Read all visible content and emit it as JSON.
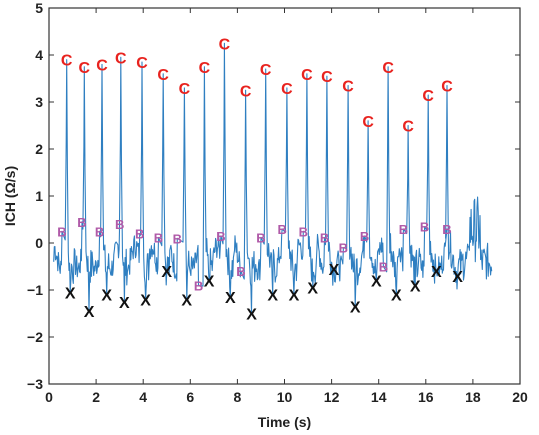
{
  "chart_data": {
    "type": "line",
    "title": "",
    "xlabel": "Time (s)",
    "ylabel": "ICH (Ω/s)",
    "xlim": [
      0,
      20
    ],
    "ylim": [
      -3,
      5
    ],
    "xticks": [
      0,
      2,
      4,
      6,
      8,
      10,
      12,
      14,
      16,
      18,
      20
    ],
    "yticks": [
      -3,
      -2,
      -1,
      0,
      1,
      2,
      3,
      4,
      5
    ],
    "grid": false,
    "legend": "none",
    "colors": {
      "signal": "#2f7fc1",
      "c_marker": "#e8231f",
      "b_marker": "#b05aa8",
      "x_marker": "#111111",
      "frame": "#333333"
    },
    "signal_range": [
      0.2,
      18.8
    ],
    "marker_symbols": {
      "c": "C",
      "b": "B",
      "x": "X"
    },
    "c_points": [
      {
        "x": 0.75,
        "y": 3.9
      },
      {
        "x": 1.5,
        "y": 3.75
      },
      {
        "x": 2.25,
        "y": 3.8
      },
      {
        "x": 3.05,
        "y": 3.95
      },
      {
        "x": 3.95,
        "y": 3.85
      },
      {
        "x": 4.85,
        "y": 3.6
      },
      {
        "x": 5.75,
        "y": 3.3
      },
      {
        "x": 6.6,
        "y": 3.75
      },
      {
        "x": 7.45,
        "y": 4.25
      },
      {
        "x": 8.35,
        "y": 3.25
      },
      {
        "x": 9.2,
        "y": 3.7
      },
      {
        "x": 10.1,
        "y": 3.3
      },
      {
        "x": 10.95,
        "y": 3.6
      },
      {
        "x": 11.8,
        "y": 3.55
      },
      {
        "x": 12.7,
        "y": 3.35
      },
      {
        "x": 13.55,
        "y": 2.6
      },
      {
        "x": 14.4,
        "y": 3.75
      },
      {
        "x": 15.25,
        "y": 2.5
      },
      {
        "x": 16.1,
        "y": 3.15
      },
      {
        "x": 16.9,
        "y": 3.35
      }
    ],
    "b_points": [
      {
        "x": 0.55,
        "y": 0.25
      },
      {
        "x": 1.4,
        "y": 0.45
      },
      {
        "x": 2.15,
        "y": 0.25
      },
      {
        "x": 3.0,
        "y": 0.4
      },
      {
        "x": 3.85,
        "y": 0.2
      },
      {
        "x": 4.65,
        "y": 0.12
      },
      {
        "x": 5.45,
        "y": 0.1
      },
      {
        "x": 6.35,
        "y": -0.9
      },
      {
        "x": 7.3,
        "y": 0.15
      },
      {
        "x": 8.15,
        "y": -0.6
      },
      {
        "x": 9.0,
        "y": 0.12
      },
      {
        "x": 9.9,
        "y": 0.3
      },
      {
        "x": 10.8,
        "y": 0.25
      },
      {
        "x": 11.7,
        "y": 0.12
      },
      {
        "x": 12.5,
        "y": -0.1
      },
      {
        "x": 13.4,
        "y": 0.15
      },
      {
        "x": 14.2,
        "y": -0.5
      },
      {
        "x": 15.05,
        "y": 0.3
      },
      {
        "x": 15.95,
        "y": 0.35
      },
      {
        "x": 16.9,
        "y": 0.3
      }
    ],
    "x_points": [
      {
        "x": 0.9,
        "y": -1.05
      },
      {
        "x": 1.7,
        "y": -1.45
      },
      {
        "x": 2.45,
        "y": -1.1
      },
      {
        "x": 3.2,
        "y": -1.25
      },
      {
        "x": 4.1,
        "y": -1.2
      },
      {
        "x": 5.0,
        "y": -0.6
      },
      {
        "x": 5.85,
        "y": -1.2
      },
      {
        "x": 6.8,
        "y": -0.8
      },
      {
        "x": 7.7,
        "y": -1.15
      },
      {
        "x": 8.6,
        "y": -1.5
      },
      {
        "x": 9.5,
        "y": -1.1
      },
      {
        "x": 10.4,
        "y": -1.1
      },
      {
        "x": 11.2,
        "y": -0.95
      },
      {
        "x": 12.1,
        "y": -0.55
      },
      {
        "x": 13.0,
        "y": -1.35
      },
      {
        "x": 13.9,
        "y": -0.8
      },
      {
        "x": 14.75,
        "y": -1.1
      },
      {
        "x": 15.55,
        "y": -0.9
      },
      {
        "x": 16.45,
        "y": -0.6
      },
      {
        "x": 17.35,
        "y": -0.7
      }
    ]
  }
}
